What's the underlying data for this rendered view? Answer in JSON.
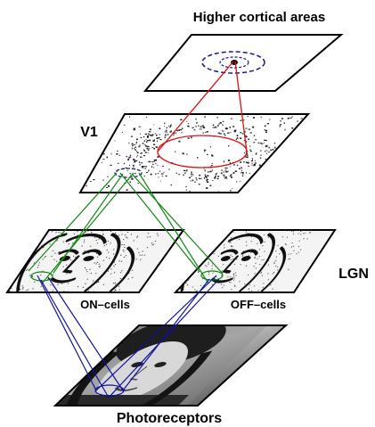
{
  "labels": {
    "higher_cortical": "Higher cortical areas",
    "v1": "V1",
    "lgn": "LGN",
    "on_cells": "ON–cells",
    "off_cells": "OFF–cells",
    "photoreceptors": "Photoreceptors"
  },
  "colors": {
    "red": "#dd1111",
    "green": "#118811",
    "blue": "#11119a",
    "ring": "#1a1a8a"
  }
}
